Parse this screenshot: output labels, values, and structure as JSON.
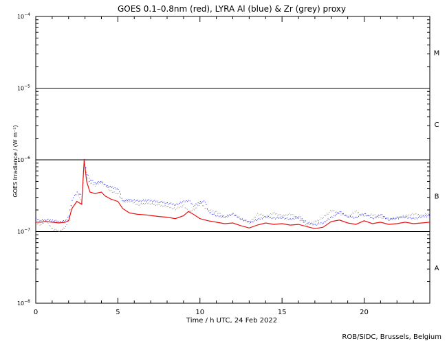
{
  "chart_data": {
    "type": "line",
    "title": "GOES 0.1–0.8nm (red), LYRA Al (blue) & Zr (grey) proxy",
    "xlabel": "Time / h UTC, 24 Feb 2022",
    "ylabel": "GOES Irradiance / (W m⁻²)",
    "credit": "ROB/SIDC, Brussels, Belgium",
    "xlim": [
      0,
      24
    ],
    "ylim_log10": [
      -8,
      -4
    ],
    "y_scale": "log",
    "x_ticks": [
      0,
      5,
      10,
      15,
      20
    ],
    "x_tick_labels": [
      "0",
      "5",
      "10",
      "15",
      "20"
    ],
    "y_ticks_log10": [
      -8,
      -7,
      -6,
      -5,
      -4
    ],
    "y_tick_bases": [
      "10",
      "10",
      "10",
      "10",
      "10"
    ],
    "y_tick_exponents": [
      "−8",
      "−7",
      "−6",
      "−5",
      "−4"
    ],
    "class_thresholds_log10": [
      -7,
      -6,
      -5
    ],
    "flare_classes": [
      {
        "label": "A",
        "at_log10": -7.5
      },
      {
        "label": "B",
        "at_log10": -6.5
      },
      {
        "label": "C",
        "at_log10": -5.5
      },
      {
        "label": "M",
        "at_log10": -4.5
      }
    ],
    "series": [
      {
        "name": "LYRA Zr proxy",
        "color": "#8a8a8a",
        "style": "dots",
        "x": [
          0,
          0.3,
          0.6,
          1.0,
          1.4,
          1.8,
          2.0,
          2.2,
          2.5,
          2.8,
          2.95,
          3.2,
          3.6,
          4.0,
          4.5,
          5.0,
          5.3,
          5.7,
          6.2,
          6.8,
          7.5,
          8.0,
          8.5,
          9.0,
          9.3,
          9.7,
          10.0,
          10.5,
          11.0,
          11.5,
          12.0,
          12.5,
          13.0,
          13.5,
          14.0,
          14.5,
          15.0,
          15.5,
          16.0,
          16.5,
          17.0,
          17.5,
          18.0,
          18.5,
          19.0,
          19.5,
          20.0,
          20.5,
          21.0,
          21.5,
          22.0,
          22.5,
          23.0,
          23.5,
          24.0
        ],
        "y_log10": [
          -6.88,
          -6.9,
          -6.85,
          -6.96,
          -6.99,
          -6.94,
          -6.8,
          -6.55,
          -6.45,
          -6.6,
          -6.05,
          -6.3,
          -6.35,
          -6.3,
          -6.42,
          -6.48,
          -6.58,
          -6.57,
          -6.62,
          -6.6,
          -6.63,
          -6.65,
          -6.68,
          -6.63,
          -6.72,
          -6.68,
          -6.6,
          -6.7,
          -6.72,
          -6.8,
          -6.75,
          -6.82,
          -6.87,
          -6.75,
          -6.78,
          -6.74,
          -6.78,
          -6.75,
          -6.82,
          -6.9,
          -6.86,
          -6.8,
          -6.7,
          -6.75,
          -6.78,
          -6.72,
          -6.78,
          -6.76,
          -6.8,
          -6.82,
          -6.8,
          -6.78,
          -6.75,
          -6.77,
          -6.74
        ]
      },
      {
        "name": "LYRA Al proxy (blue)",
        "color": "#1a1aff",
        "style": "dots",
        "x": [
          0,
          0.3,
          0.6,
          1.0,
          1.4,
          1.8,
          2.0,
          2.2,
          2.5,
          2.8,
          2.95,
          3.1,
          3.3,
          3.6,
          4.0,
          4.2,
          4.6,
          5.0,
          5.3,
          5.7,
          6.2,
          6.8,
          7.5,
          8.0,
          8.5,
          9.0,
          9.3,
          9.6,
          10.0,
          10.3,
          10.5,
          11.0,
          11.5,
          12.0,
          12.5,
          13.0,
          13.5,
          14.0,
          14.5,
          15.0,
          15.5,
          16.0,
          16.5,
          17.0,
          17.5,
          18.0,
          18.5,
          19.0,
          19.5,
          20.0,
          20.5,
          21.0,
          21.5,
          22.0,
          22.5,
          23.0,
          23.5,
          24.0
        ],
        "y_log10": [
          -6.82,
          -6.84,
          -6.83,
          -6.84,
          -6.86,
          -6.85,
          -6.78,
          -6.55,
          -6.45,
          -6.5,
          -6.0,
          -6.2,
          -6.27,
          -6.32,
          -6.3,
          -6.35,
          -6.38,
          -6.4,
          -6.57,
          -6.55,
          -6.57,
          -6.56,
          -6.58,
          -6.6,
          -6.62,
          -6.58,
          -6.56,
          -6.64,
          -6.58,
          -6.58,
          -6.72,
          -6.78,
          -6.79,
          -6.75,
          -6.82,
          -6.87,
          -6.83,
          -6.79,
          -6.81,
          -6.8,
          -6.83,
          -6.79,
          -6.87,
          -6.9,
          -6.87,
          -6.8,
          -6.72,
          -6.79,
          -6.8,
          -6.74,
          -6.82,
          -6.76,
          -6.83,
          -6.81,
          -6.79,
          -6.82,
          -6.79,
          -6.77
        ]
      },
      {
        "name": "GOES 0.1–0.8nm (red)",
        "color": "#e81010",
        "style": "line",
        "x": [
          0,
          0.3,
          0.6,
          1.0,
          1.4,
          1.8,
          2.0,
          2.2,
          2.5,
          2.8,
          2.95,
          3.1,
          3.3,
          3.6,
          4.0,
          4.2,
          4.6,
          5.0,
          5.3,
          5.7,
          6.2,
          6.8,
          7.5,
          8.0,
          8.5,
          9.0,
          9.3,
          9.6,
          10.0,
          10.5,
          11.0,
          11.5,
          12.0,
          12.5,
          13.0,
          13.5,
          14.0,
          14.5,
          15.0,
          15.5,
          16.0,
          16.5,
          17.0,
          17.5,
          18.0,
          18.5,
          19.0,
          19.5,
          20.0,
          20.5,
          21.0,
          21.5,
          22.0,
          22.5,
          23.0,
          23.5,
          24.0
        ],
        "y_log10": [
          -6.87,
          -6.87,
          -6.86,
          -6.87,
          -6.88,
          -6.87,
          -6.85,
          -6.68,
          -6.58,
          -6.62,
          -6.0,
          -6.3,
          -6.45,
          -6.47,
          -6.45,
          -6.5,
          -6.55,
          -6.58,
          -6.68,
          -6.74,
          -6.76,
          -6.77,
          -6.79,
          -6.8,
          -6.82,
          -6.78,
          -6.72,
          -6.76,
          -6.82,
          -6.85,
          -6.87,
          -6.89,
          -6.88,
          -6.92,
          -6.95,
          -6.91,
          -6.88,
          -6.9,
          -6.89,
          -6.91,
          -6.9,
          -6.93,
          -6.96,
          -6.94,
          -6.86,
          -6.84,
          -6.88,
          -6.9,
          -6.85,
          -6.89,
          -6.87,
          -6.9,
          -6.89,
          -6.87,
          -6.89,
          -6.88,
          -6.87
        ]
      }
    ]
  }
}
